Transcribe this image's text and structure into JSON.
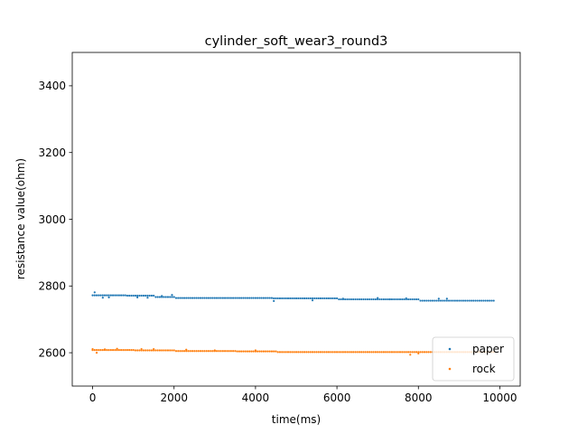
{
  "chart_data": {
    "type": "scatter",
    "title": "cylinder_soft_wear3_round3",
    "xlabel": "time(ms)",
    "ylabel": "resistance value(ohm)",
    "xlim": [
      -500,
      10500
    ],
    "ylim": [
      2500,
      3500
    ],
    "xticks": [
      0,
      2000,
      4000,
      6000,
      8000,
      10000
    ],
    "xtick_labels": [
      "0",
      "2000",
      "4000",
      "6000",
      "8000",
      "10000"
    ],
    "yticks": [
      2600,
      2800,
      3000,
      3200,
      3400
    ],
    "ytick_labels": [
      "2600",
      "2800",
      "3000",
      "3200",
      "3400"
    ],
    "grid": false,
    "legend_position": "lower-right",
    "series": [
      {
        "name": "paper",
        "color": "#1f77b4",
        "segments": [
          {
            "x_start": 0,
            "x_end": 400,
            "step": 50,
            "y": 2772
          },
          {
            "x_start": 450,
            "x_end": 800,
            "step": 50,
            "y": 2772
          },
          {
            "x_start": 850,
            "x_end": 1500,
            "step": 50,
            "y": 2771
          },
          {
            "x_start": 1550,
            "x_end": 2000,
            "step": 50,
            "y": 2767
          },
          {
            "x_start": 2050,
            "x_end": 4400,
            "step": 50,
            "y": 2764
          },
          {
            "x_start": 4450,
            "x_end": 6000,
            "step": 50,
            "y": 2763
          },
          {
            "x_start": 6050,
            "x_end": 8000,
            "step": 50,
            "y": 2760
          },
          {
            "x_start": 8050,
            "x_end": 9850,
            "step": 50,
            "y": 2756
          }
        ],
        "extra_points": [
          [
            50,
            2781
          ],
          [
            250,
            2765
          ],
          [
            400,
            2766
          ],
          [
            1100,
            2766
          ],
          [
            1350,
            2765
          ],
          [
            1700,
            2770
          ],
          [
            1950,
            2773
          ],
          [
            4450,
            2755
          ],
          [
            5400,
            2757
          ],
          [
            6150,
            2762
          ],
          [
            7000,
            2764
          ],
          [
            7300,
            2760
          ],
          [
            7700,
            2763
          ],
          [
            8500,
            2762
          ],
          [
            8700,
            2762
          ]
        ]
      },
      {
        "name": "rock",
        "color": "#ff7f0e",
        "segments": [
          {
            "x_start": 0,
            "x_end": 1000,
            "step": 50,
            "y": 2608
          },
          {
            "x_start": 1050,
            "x_end": 2000,
            "step": 50,
            "y": 2607
          },
          {
            "x_start": 2050,
            "x_end": 3500,
            "step": 50,
            "y": 2605
          },
          {
            "x_start": 3550,
            "x_end": 4500,
            "step": 50,
            "y": 2604
          },
          {
            "x_start": 4550,
            "x_end": 9850,
            "step": 50,
            "y": 2602
          }
        ],
        "extra_points": [
          [
            0,
            2611
          ],
          [
            100,
            2600
          ],
          [
            300,
            2610
          ],
          [
            600,
            2612
          ],
          [
            1200,
            2611
          ],
          [
            1500,
            2611
          ],
          [
            2300,
            2609
          ],
          [
            3000,
            2607
          ],
          [
            4000,
            2607
          ],
          [
            7800,
            2594
          ],
          [
            8000,
            2598
          ]
        ]
      }
    ]
  }
}
